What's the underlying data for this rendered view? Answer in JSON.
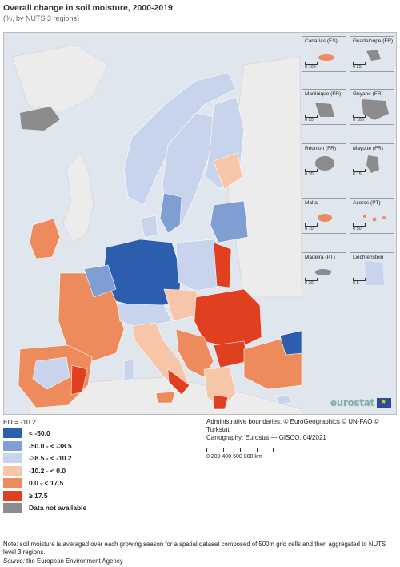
{
  "header": {
    "title": "Overall change in soil moisture, 2000-2019",
    "subtitle": "(%, by NUTS 3 regions)"
  },
  "map": {
    "colors": {
      "sea": "#dfe6ee",
      "non_eu_land": "#ececec",
      "no_data": "#8c8c8c",
      "border": "#ffffff"
    },
    "insets": [
      {
        "label": "Canarias (ES)",
        "scale": "0  100"
      },
      {
        "label": "Guadeloupe (FR)",
        "scale": "0  25"
      },
      {
        "label": "Martinique (FR)",
        "scale": "0  20"
      },
      {
        "label": "Guyane (FR)",
        "scale": "0  100"
      },
      {
        "label": "Réunion (FR)",
        "scale": "0  20"
      },
      {
        "label": "Mayotte (FR)",
        "scale": "0  15"
      },
      {
        "label": "Malta",
        "scale": "0  10"
      },
      {
        "label": "Açores (PT)",
        "scale": "0  50"
      },
      {
        "label": "Madeira (PT)",
        "scale": "0  20"
      },
      {
        "label": "Liechtenstein",
        "scale": "0  5"
      }
    ],
    "logo_text": "eurostat"
  },
  "legend": {
    "eu_value": "EU = -10.2",
    "classes": [
      {
        "label": "< -50.0",
        "color": "#2d5eae"
      },
      {
        "label": "-50.0 - < -38.5",
        "color": "#7f9fd3"
      },
      {
        "label": "-38.5 - < -10.2",
        "color": "#c8d3ec"
      },
      {
        "label": "-10.2 - < 0.0",
        "color": "#f7c6a8"
      },
      {
        "label": "0.0 - < 17.5",
        "color": "#ee8b5c"
      },
      {
        "label": "≥ 17.5",
        "color": "#e0401f"
      },
      {
        "label": "Data not available",
        "color": "#8c8c8c"
      }
    ]
  },
  "credits": {
    "line1": "Administrative boundaries: © EuroGeographics © UN-FAO © Turkstat",
    "line2": "Cartography: Eurostat — GISCO, 04/2021"
  },
  "scalebar": {
    "labels": "0     200    400    600    800 km"
  },
  "footer": {
    "note": "Note: soil moisture is averaged over each growing season for a spatial dataset composed of 500m grid cells and then aggregated to NUTS level 3 regions.",
    "source_label": "Source:",
    "source_text": " the European Environment Agency"
  }
}
